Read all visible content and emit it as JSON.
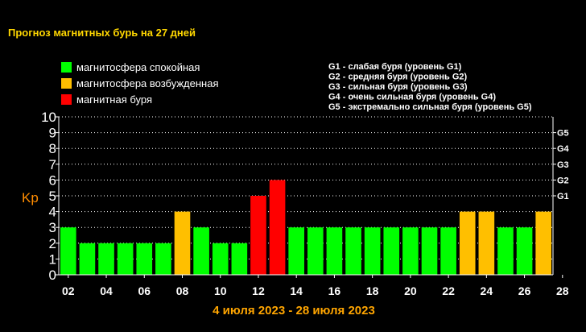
{
  "title": "Прогноз магнитных бурь на 27 дней",
  "colors": {
    "title": "#ffd700",
    "calm": "#00ff00",
    "excited": "#ffbf00",
    "storm": "#ff0000",
    "ylabel": "#ff8c00",
    "date_range": "#ffa500",
    "grid": "#ffffff",
    "axis": "#ffffff",
    "text": "#ffffff"
  },
  "legend": [
    {
      "label": "магнитосфера спокойная",
      "color": "#00ff00"
    },
    {
      "label": "магнитосфера возбужденная",
      "color": "#ffbf00"
    },
    {
      "label": "магнитная буря",
      "color": "#ff0000"
    }
  ],
  "storm_levels": [
    "G1 - слабая буря (уровень G1)",
    "G2 - средняя буря (уровень G2)",
    "G3 - сильная буря (уровень G3)",
    "G4 - очень сильная буря (уровень G4)",
    "G5 - экстремально сильная буря (уровень G5)"
  ],
  "date_range": "4 июля 2023 - 28 июля 2023",
  "chart_data": {
    "type": "bar",
    "ylabel": "Kp",
    "ylim": [
      0,
      10
    ],
    "y_ticks": [
      "0",
      "1",
      "2",
      "3",
      "4",
      "5",
      "6",
      "7",
      "8",
      "9",
      "10"
    ],
    "g_ticks": [
      {
        "label": "G1",
        "y": 5
      },
      {
        "label": "G2",
        "y": 6
      },
      {
        "label": "G3",
        "y": 7
      },
      {
        "label": "G4",
        "y": 8
      },
      {
        "label": "G5",
        "y": 9
      }
    ],
    "grid": true,
    "x_tick_labels": [
      "02",
      "04",
      "06",
      "08",
      "10",
      "12",
      "14",
      "16",
      "18",
      "20",
      "22",
      "24",
      "26",
      "28"
    ],
    "x_tick_positions": [
      1,
      3,
      5,
      7,
      9,
      11,
      13,
      15,
      17,
      19,
      21,
      23,
      25,
      27
    ],
    "values": [
      3,
      2,
      2,
      2,
      2,
      2,
      4,
      3,
      2,
      2,
      5,
      6,
      3,
      3,
      3,
      3,
      3,
      3,
      3,
      3,
      3,
      4,
      4,
      3,
      3,
      4
    ],
    "levels": [
      "calm",
      "calm",
      "calm",
      "calm",
      "calm",
      "calm",
      "excited",
      "calm",
      "calm",
      "calm",
      "storm",
      "storm",
      "calm",
      "calm",
      "calm",
      "calm",
      "calm",
      "calm",
      "calm",
      "calm",
      "calm",
      "excited",
      "excited",
      "calm",
      "calm",
      "excited"
    ]
  }
}
